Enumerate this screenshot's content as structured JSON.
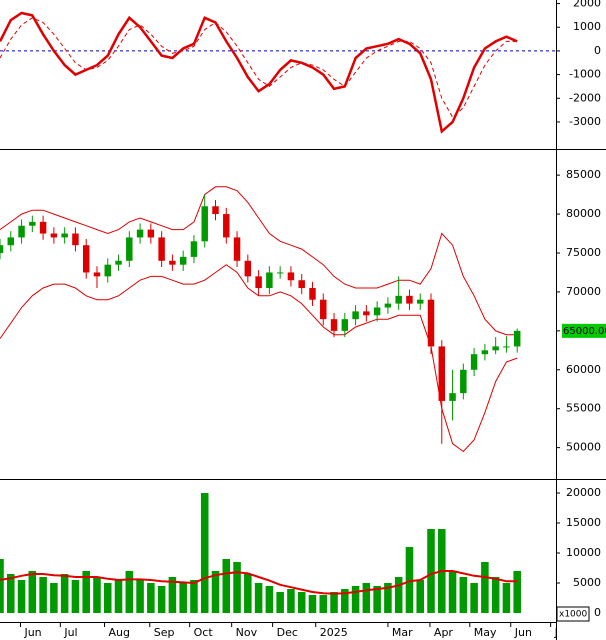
{
  "chart_data": [
    {
      "type": "line",
      "x": [
        0,
        1,
        2,
        3,
        4,
        5,
        6,
        7,
        8,
        9,
        10,
        11,
        12,
        13,
        14,
        15,
        16,
        17,
        18,
        19,
        20,
        21,
        22,
        23,
        24,
        25,
        26,
        27,
        28,
        29,
        30,
        31,
        32,
        33,
        34,
        35,
        36,
        37,
        38,
        39,
        40,
        41,
        42,
        43,
        44,
        45,
        46,
        47,
        48
      ],
      "xlim": [
        0,
        51.6
      ],
      "ylim": [
        -4100,
        2150
      ],
      "yticks": [
        2000,
        1000,
        0,
        -1000,
        -2000,
        -3000
      ],
      "zero_line": {
        "value": 0,
        "color": "#0000cc"
      },
      "series": [
        {
          "color": "#e00000",
          "dash": false,
          "values": [
            400,
            1300,
            1600,
            1500,
            700,
            0,
            -600,
            -1000,
            -800,
            -600,
            -200,
            700,
            1400,
            1000,
            400,
            -200,
            -300,
            100,
            300,
            1400,
            1200,
            400,
            -300,
            -1100,
            -1700,
            -1400,
            -800,
            -400,
            -500,
            -700,
            -1000,
            -1600,
            -1500,
            -300,
            100,
            200,
            300,
            500,
            300,
            -100,
            -1200,
            -3400,
            -3000,
            -2000,
            -700,
            100,
            400,
            600,
            400
          ]
        },
        {
          "color": "#e00000",
          "dash": true,
          "values": [
            -300,
            500,
            1100,
            1400,
            1200,
            700,
            100,
            -500,
            -800,
            -700,
            -400,
            200,
            900,
            1100,
            700,
            200,
            -100,
            0,
            200,
            900,
            1200,
            800,
            200,
            -500,
            -1200,
            -1500,
            -1100,
            -700,
            -500,
            -600,
            -800,
            -1200,
            -1500,
            -900,
            -300,
            0,
            200,
            400,
            400,
            100,
            -500,
            -2000,
            -2800,
            -2400,
            -1500,
            -600,
            0,
            400,
            400
          ]
        }
      ]
    },
    {
      "type": "candlestick",
      "x": [
        0,
        1,
        2,
        3,
        4,
        5,
        6,
        7,
        8,
        9,
        10,
        11,
        12,
        13,
        14,
        15,
        16,
        17,
        18,
        19,
        20,
        21,
        22,
        23,
        24,
        25,
        26,
        27,
        28,
        29,
        30,
        31,
        32,
        33,
        34,
        35,
        36,
        37,
        38,
        39,
        40,
        41,
        42,
        43,
        44,
        45,
        46,
        47,
        48
      ],
      "xlim": [
        0,
        51.6
      ],
      "ylim": [
        46100,
        88100
      ],
      "yticks": [
        50000,
        55000,
        60000,
        65000,
        70000,
        75000,
        80000,
        85000
      ],
      "up_color": "#009900",
      "down_color": "#dd0000",
      "open": [
        75000,
        76000,
        77000,
        78500,
        79000,
        77500,
        77000,
        77500,
        76000,
        72500,
        72000,
        73500,
        74000,
        77000,
        78000,
        77000,
        74000,
        73500,
        74500,
        76500,
        81000,
        80000,
        77000,
        74000,
        72000,
        70500,
        72500,
        72500,
        71500,
        70500,
        69000,
        66500,
        65000,
        66500,
        67500,
        67000,
        68000,
        68500,
        69500,
        68500,
        69000,
        63000,
        56000,
        57000,
        60000,
        62000,
        62500,
        63000,
        63000
      ],
      "high": [
        76800,
        77800,
        79300,
        79800,
        79800,
        78300,
        78300,
        78300,
        76800,
        73300,
        74300,
        74800,
        77800,
        78800,
        78800,
        77800,
        74800,
        75300,
        77300,
        82500,
        81800,
        80800,
        77800,
        74800,
        72800,
        73300,
        73300,
        73300,
        72300,
        71300,
        69800,
        67300,
        67300,
        68300,
        68300,
        68800,
        69300,
        72000,
        70300,
        69800,
        69800,
        63800,
        60000,
        60800,
        62800,
        63300,
        64200,
        64300,
        65300
      ],
      "low": [
        74200,
        75200,
        76200,
        77700,
        76700,
        76200,
        76200,
        75200,
        71700,
        70500,
        71200,
        72700,
        73200,
        76200,
        76200,
        73200,
        72700,
        72700,
        73700,
        75700,
        79200,
        76200,
        73200,
        71200,
        69500,
        69700,
        71700,
        70700,
        69700,
        68200,
        65700,
        64200,
        64200,
        65700,
        66200,
        66200,
        67200,
        67700,
        67700,
        67700,
        62000,
        50500,
        53500,
        56200,
        59200,
        61200,
        62000,
        62200,
        62200
      ],
      "close": [
        76000,
        77000,
        78500,
        79000,
        77500,
        77000,
        77500,
        76000,
        72500,
        72000,
        73500,
        74000,
        77000,
        78000,
        77000,
        74000,
        73500,
        74500,
        76500,
        81000,
        80000,
        77000,
        74000,
        72000,
        70500,
        72500,
        72500,
        71500,
        70500,
        69000,
        66500,
        65000,
        66500,
        67500,
        67000,
        68000,
        68500,
        69500,
        68500,
        69000,
        63000,
        56000,
        57000,
        60000,
        62000,
        62500,
        63000,
        63000,
        65000
      ],
      "series": [
        {
          "color": "#e00000",
          "dash": false,
          "values": [
            78000,
            79000,
            80000,
            80500,
            80500,
            80000,
            79500,
            79000,
            78500,
            78000,
            77500,
            78000,
            79000,
            79500,
            79000,
            78500,
            78000,
            78000,
            79000,
            82500,
            83500,
            83500,
            83000,
            81500,
            79500,
            77500,
            76500,
            76000,
            75500,
            74500,
            73500,
            72000,
            71000,
            70500,
            70500,
            70500,
            71000,
            71500,
            71500,
            71000,
            73000,
            77500,
            76000,
            72000,
            69500,
            66500,
            65000,
            64500,
            64500
          ]
        },
        {
          "color": "#e00000",
          "dash": false,
          "values": [
            64000,
            66000,
            68000,
            69500,
            70500,
            71000,
            71000,
            70500,
            69500,
            69000,
            69000,
            69500,
            70500,
            71500,
            72000,
            72000,
            71500,
            71000,
            71000,
            71500,
            72500,
            73500,
            72500,
            70500,
            69500,
            69500,
            70000,
            69500,
            68500,
            67000,
            65500,
            64500,
            64500,
            65500,
            66000,
            66500,
            66500,
            67000,
            67000,
            67000,
            63000,
            55000,
            50500,
            49500,
            51000,
            54500,
            58500,
            61000,
            61500
          ]
        }
      ],
      "price_marker": {
        "value": 65000,
        "label": "65000.00",
        "color": "#00cc00"
      }
    },
    {
      "type": "bar",
      "x": [
        0,
        1,
        2,
        3,
        4,
        5,
        6,
        7,
        8,
        9,
        10,
        11,
        12,
        13,
        14,
        15,
        16,
        17,
        18,
        19,
        20,
        21,
        22,
        23,
        24,
        25,
        26,
        27,
        28,
        29,
        30,
        31,
        32,
        33,
        34,
        35,
        36,
        37,
        38,
        39,
        40,
        41,
        42,
        43,
        44,
        45,
        46,
        47,
        48
      ],
      "xlim": [
        0,
        51.6
      ],
      "ylim": [
        -1500,
        22000
      ],
      "yticks": [
        0,
        5000,
        10000,
        15000,
        20000
      ],
      "unit_label": "x1000",
      "color": "#009900",
      "values": [
        9000,
        6500,
        5500,
        7000,
        6000,
        5000,
        6500,
        5500,
        7000,
        6000,
        5000,
        5500,
        7000,
        5500,
        5000,
        4500,
        6000,
        5000,
        5500,
        20000,
        7000,
        9000,
        8500,
        6500,
        5000,
        4500,
        3500,
        4000,
        3500,
        3000,
        3000,
        3500,
        4000,
        4500,
        5000,
        4500,
        5000,
        6000,
        11000,
        5500,
        14000,
        14000,
        7000,
        6000,
        5000,
        8500,
        6000,
        5000,
        7000
      ],
      "series": [
        {
          "color": "#e00000",
          "dash": false,
          "values": [
            5500,
            5800,
            6200,
            6500,
            6500,
            6300,
            6200,
            6000,
            6000,
            6000,
            5700,
            5500,
            5600,
            5600,
            5500,
            5300,
            5200,
            5100,
            5000,
            5800,
            6300,
            6600,
            6800,
            6600,
            6000,
            5400,
            4700,
            4300,
            3900,
            3500,
            3300,
            3200,
            3300,
            3500,
            3800,
            4000,
            4200,
            4600,
            5300,
            5500,
            6500,
            7000,
            7000,
            6600,
            6200,
            6000,
            5700,
            5300,
            5300
          ]
        }
      ],
      "xticks": [
        {
          "value": 1.9,
          "label": "Jun"
        },
        {
          "value": 5.6,
          "label": "Jul"
        },
        {
          "value": 9.7,
          "label": "Aug"
        },
        {
          "value": 13.9,
          "label": "Sep"
        },
        {
          "value": 17.6,
          "label": "Oct"
        },
        {
          "value": 21.5,
          "label": "Nov"
        },
        {
          "value": 25.3,
          "label": "Dec"
        },
        {
          "value": 29.3,
          "label": "2025"
        },
        {
          "value": 36,
          "label": "Mar"
        },
        {
          "value": 39.9,
          "label": "Apr"
        },
        {
          "value": 43.6,
          "label": "May"
        },
        {
          "value": 47.4,
          "label": "Jun"
        },
        {
          "value": 51.1,
          "label": "J"
        }
      ]
    }
  ]
}
